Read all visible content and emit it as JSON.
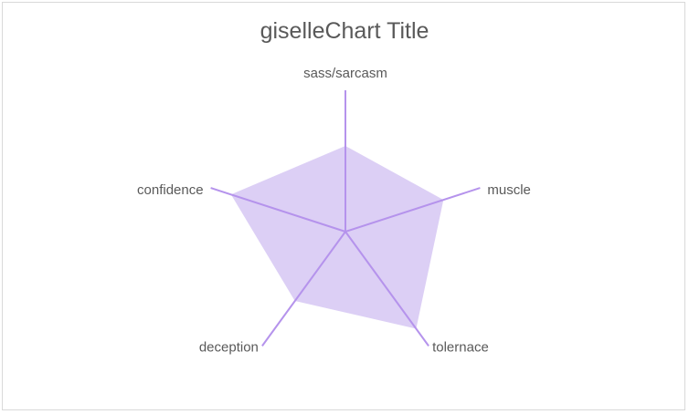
{
  "chart_data": {
    "type": "radar",
    "title": "giselleChart Title",
    "categories": [
      "sass/sarcasm",
      "muscle",
      "tolernace",
      "deception",
      "confidence"
    ],
    "series": [
      {
        "values": [
          5,
          6,
          7,
          5,
          7
        ]
      }
    ],
    "rmax": 10,
    "grid": false,
    "legend": "none",
    "colors": {
      "fill": "#dccff5",
      "axis": "#b593ec",
      "text": "#595959",
      "border": "#d9d9d9"
    }
  }
}
